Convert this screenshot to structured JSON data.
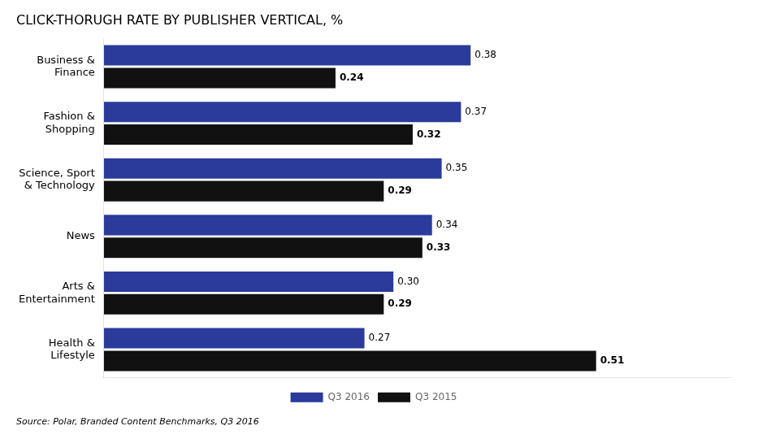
{
  "chart_data": {
    "type": "bar",
    "orientation": "horizontal",
    "title": "CLICK-THORUGH RATE BY PUBLISHER VERTICAL, %",
    "annotations": [
      "Source: Polar, Branded Content Benchmarks, Q3 2016"
    ],
    "categories": [
      [
        "Business &",
        "Finance"
      ],
      [
        "Fashion &",
        "Shopping"
      ],
      [
        "Science, Sport",
        "& Technology"
      ],
      [
        "News"
      ],
      [
        "Arts &",
        "Entertainment"
      ],
      [
        "Health &",
        "Lifestyle"
      ]
    ],
    "series": [
      {
        "name": "Q3 2016",
        "color": "#2B3B9B",
        "values": [
          0.38,
          0.37,
          0.35,
          0.34,
          0.3,
          0.27
        ],
        "value_labels": [
          "0.38",
          "0.37",
          "0.35",
          "0.34",
          "0.30",
          "0.27"
        ]
      },
      {
        "name": "Q3 2015",
        "color": "#111111",
        "values": [
          0.24,
          0.32,
          0.29,
          0.33,
          0.29,
          0.51
        ],
        "value_labels": [
          "0.24",
          "0.32",
          "0.29",
          "0.33",
          "0.29",
          "0.51"
        ]
      }
    ],
    "xlim": [
      0,
      0.65
    ],
    "grid": false,
    "legend": "bottom",
    "data_labels": true,
    "tick_labels": "y"
  }
}
